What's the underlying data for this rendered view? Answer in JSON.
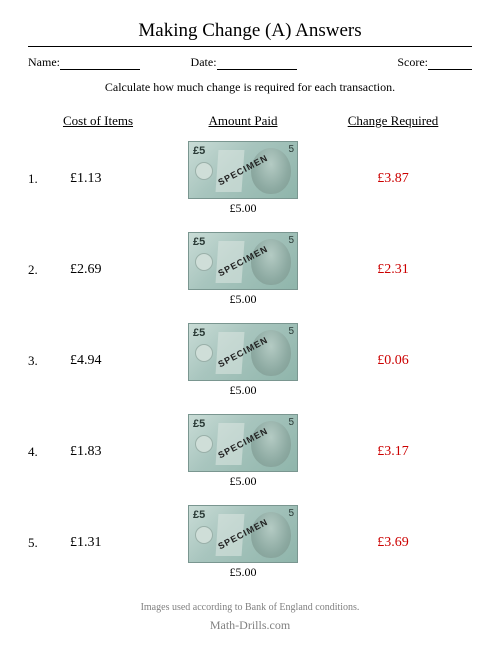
{
  "title": "Making Change (A) Answers",
  "meta": {
    "name_label": "Name:",
    "date_label": "Date:",
    "score_label": "Score:"
  },
  "instructions": "Calculate how much change is required for each transaction.",
  "headers": {
    "cost": "Cost of Items",
    "paid": "Amount Paid",
    "change": "Change Required"
  },
  "banknote": {
    "denom_left": "£5",
    "denom_right": "5",
    "specimen": "SPECIMEN",
    "amount_label": "£5.00",
    "face_color": "#8fb5ab",
    "bg_gradient_start": "#c9dcd6",
    "bg_gradient_end": "#8fb5ab"
  },
  "change_color": "#cc0000",
  "text_color": "#000000",
  "rows": [
    {
      "n": "1.",
      "cost": "£1.13",
      "paid": "£5.00",
      "change": "£3.87"
    },
    {
      "n": "2.",
      "cost": "£2.69",
      "paid": "£5.00",
      "change": "£2.31"
    },
    {
      "n": "3.",
      "cost": "£4.94",
      "paid": "£5.00",
      "change": "£0.06"
    },
    {
      "n": "4.",
      "cost": "£1.83",
      "paid": "£5.00",
      "change": "£3.17"
    },
    {
      "n": "5.",
      "cost": "£1.31",
      "paid": "£5.00",
      "change": "£3.69"
    }
  ],
  "footer_conditions": "Images used according to Bank of England conditions.",
  "footer_site": "Math-Drills.com"
}
